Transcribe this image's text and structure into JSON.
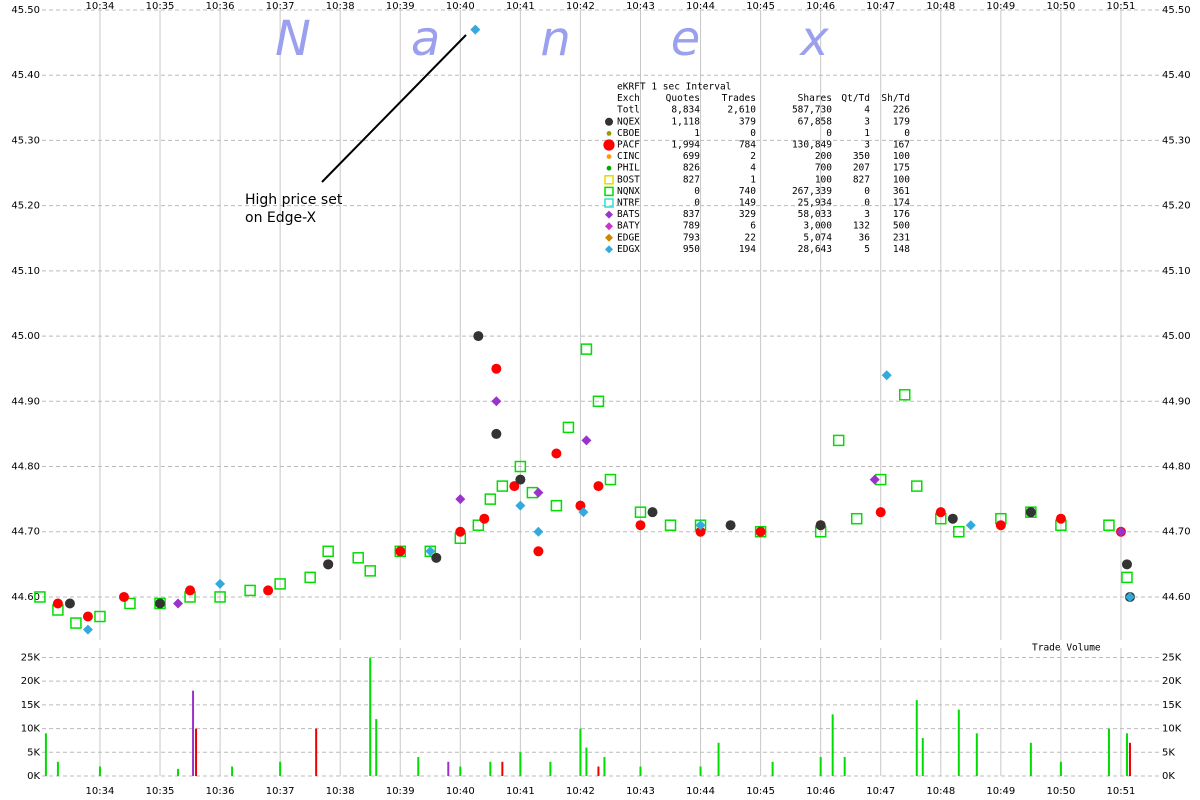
{
  "chart_data": [
    {
      "type": "scatter",
      "watermark": "Nanex",
      "annotation": [
        "High price set",
        "on Edge-X"
      ],
      "xlim": [
        633.035,
        651.65
      ],
      "xticks": [
        {
          "value": 634,
          "label": "10:34"
        },
        {
          "value": 635,
          "label": "10:35"
        },
        {
          "value": 636,
          "label": "10:36"
        },
        {
          "value": 637,
          "label": "10:37"
        },
        {
          "value": 638,
          "label": "10:38"
        },
        {
          "value": 639,
          "label": "10:39"
        },
        {
          "value": 640,
          "label": "10:40"
        },
        {
          "value": 641,
          "label": "10:41"
        },
        {
          "value": 642,
          "label": "10:42"
        },
        {
          "value": 643,
          "label": "10:43"
        },
        {
          "value": 644,
          "label": "10:44"
        },
        {
          "value": 645,
          "label": "10:45"
        },
        {
          "value": 646,
          "label": "10:46"
        },
        {
          "value": 647,
          "label": "10:47"
        },
        {
          "value": 648,
          "label": "10:48"
        },
        {
          "value": 649,
          "label": "10:49"
        },
        {
          "value": 650,
          "label": "10:50"
        },
        {
          "value": 651,
          "label": "10:51"
        }
      ],
      "ylim": [
        44.534,
        45.5
      ],
      "yticks": [
        {
          "value": 44.6,
          "label": "44.60"
        },
        {
          "value": 44.7,
          "label": "44.70"
        },
        {
          "value": 44.8,
          "label": "44.80"
        },
        {
          "value": 44.9,
          "label": "44.90"
        },
        {
          "value": 45.0,
          "label": "45.00"
        },
        {
          "value": 45.1,
          "label": "45.10"
        },
        {
          "value": 45.2,
          "label": "45.20"
        },
        {
          "value": 45.3,
          "label": "45.30"
        },
        {
          "value": 45.4,
          "label": "45.40"
        },
        {
          "value": 45.5,
          "label": "45.50"
        }
      ],
      "grid": true,
      "series": [
        {
          "color": "#00dd00",
          "marker": "square",
          "x": [
            633.0,
            633.3,
            633.6,
            634.0,
            634.5,
            635.0,
            635.5,
            636.0,
            636.5,
            637.0,
            637.5,
            637.8,
            638.3,
            638.5,
            639.0,
            639.5,
            640.0,
            640.3,
            640.5,
            640.7,
            641.0,
            641.2,
            641.6,
            641.8,
            642.1,
            642.3,
            642.5,
            643.0,
            643.5,
            644.0,
            645.0,
            646.0,
            646.3,
            646.6,
            647.0,
            647.4,
            647.6,
            648.0,
            648.3,
            649.0,
            649.5,
            650.0,
            650.8,
            651.1
          ],
          "values": [
            44.6,
            44.58,
            44.56,
            44.57,
            44.59,
            44.59,
            44.6,
            44.6,
            44.61,
            44.62,
            44.63,
            44.67,
            44.66,
            44.64,
            44.67,
            44.67,
            44.69,
            44.71,
            44.75,
            44.77,
            44.8,
            44.76,
            44.74,
            44.86,
            44.98,
            44.9,
            44.78,
            44.73,
            44.71,
            44.71,
            44.7,
            44.7,
            44.84,
            44.72,
            44.78,
            44.91,
            44.77,
            44.72,
            44.7,
            44.72,
            44.73,
            44.71,
            44.71,
            44.63
          ]
        },
        {
          "color": "#ff0000",
          "marker": "circle",
          "x": [
            633.3,
            633.8,
            634.4,
            635.5,
            636.8,
            637.8,
            639.0,
            640.0,
            640.4,
            640.6,
            640.9,
            641.3,
            641.6,
            642.0,
            642.3,
            643.0,
            644.0,
            645.0,
            646.0,
            647.0,
            648.0,
            649.0,
            650.0,
            651.0
          ],
          "values": [
            44.59,
            44.57,
            44.6,
            44.61,
            44.61,
            44.65,
            44.67,
            44.7,
            44.72,
            44.95,
            44.77,
            44.67,
            44.82,
            44.74,
            44.77,
            44.71,
            44.7,
            44.7,
            44.71,
            44.73,
            44.73,
            44.71,
            44.72,
            44.7
          ]
        },
        {
          "color": "#333333",
          "marker": "circle",
          "x": [
            633.5,
            635.0,
            637.8,
            639.6,
            640.3,
            640.6,
            641.0,
            643.2,
            644.5,
            646.0,
            648.2,
            649.5,
            651.1,
            651.15
          ],
          "values": [
            44.59,
            44.59,
            44.65,
            44.66,
            45.0,
            44.85,
            44.78,
            44.73,
            44.71,
            44.71,
            44.72,
            44.73,
            44.65,
            44.6
          ]
        },
        {
          "color": "#9933cc",
          "marker": "diamond",
          "x": [
            635.3,
            640.0,
            640.6,
            641.3,
            642.1,
            646.9,
            651.0
          ],
          "values": [
            44.59,
            44.75,
            44.9,
            44.76,
            44.84,
            44.78,
            44.7
          ]
        },
        {
          "color": "#33aadd",
          "marker": "diamond",
          "x": [
            633.8,
            636.0,
            639.5,
            640.25,
            641.0,
            641.3,
            642.05,
            644.0,
            647.1,
            648.5,
            651.15
          ],
          "values": [
            44.55,
            44.62,
            44.67,
            45.47,
            44.74,
            44.7,
            44.73,
            44.71,
            44.94,
            44.71,
            44.6
          ]
        }
      ],
      "legend_table": {
        "title": "eKRFT 1 sec Interval",
        "columns": [
          "Exch",
          "Quotes",
          "Trades",
          "Shares",
          "Qt/Td",
          "Sh/Td"
        ],
        "rows": [
          {
            "cells": [
              "Totl",
              "8,834",
              "2,610",
              "587,730",
              "4",
              "226"
            ]
          },
          {
            "cells": [
              "NQEX",
              "1,118",
              "379",
              "67,858",
              "3",
              "179"
            ],
            "color": "#333333",
            "marker": "circle"
          },
          {
            "cells": [
              "CBOE",
              "1",
              "0",
              "0",
              "1",
              "0"
            ],
            "color": "#999900",
            "marker": "dot"
          },
          {
            "cells": [
              "PACF",
              "1,994",
              "784",
              "130,849",
              "3",
              "167"
            ],
            "color": "#ff0000",
            "marker": "bigcircle"
          },
          {
            "cells": [
              "CINC",
              "699",
              "2",
              "200",
              "350",
              "100"
            ],
            "color": "#ff9900",
            "marker": "dot"
          },
          {
            "cells": [
              "PHIL",
              "826",
              "4",
              "700",
              "207",
              "175"
            ],
            "color": "#00aa00",
            "marker": "dot"
          },
          {
            "cells": [
              "BOST",
              "827",
              "1",
              "100",
              "827",
              "100"
            ],
            "color": "#dddd00",
            "marker": "square"
          },
          {
            "cells": [
              "NQNX",
              "0",
              "740",
              "267,339",
              "0",
              "361"
            ],
            "color": "#00dd00",
            "marker": "square"
          },
          {
            "cells": [
              "NTRF",
              "0",
              "149",
              "25,934",
              "0",
              "174"
            ],
            "color": "#33ddcc",
            "marker": "square"
          },
          {
            "cells": [
              "BATS",
              "837",
              "329",
              "58,033",
              "3",
              "176"
            ],
            "color": "#9933cc",
            "marker": "diamond"
          },
          {
            "cells": [
              "BATY",
              "789",
              "6",
              "3,000",
              "132",
              "500"
            ],
            "color": "#cc33cc",
            "marker": "diamond"
          },
          {
            "cells": [
              "EDGE",
              "793",
              "22",
              "5,074",
              "36",
              "231"
            ],
            "color": "#cc8800",
            "marker": "diamond"
          },
          {
            "cells": [
              "EDGX",
              "950",
              "194",
              "28,643",
              "5",
              "148"
            ],
            "color": "#33aadd",
            "marker": "diamond"
          }
        ]
      }
    },
    {
      "type": "bar",
      "ylabel": "Trade Volume",
      "xlim": [
        633.035,
        651.65
      ],
      "xticks": [
        {
          "value": 634,
          "label": "10:34"
        },
        {
          "value": 635,
          "label": "10:35"
        },
        {
          "value": 636,
          "label": "10:36"
        },
        {
          "value": 637,
          "label": "10:37"
        },
        {
          "value": 638,
          "label": "10:38"
        },
        {
          "value": 639,
          "label": "10:39"
        },
        {
          "value": 640,
          "label": "10:40"
        },
        {
          "value": 641,
          "label": "10:41"
        },
        {
          "value": 642,
          "label": "10:42"
        },
        {
          "value": 643,
          "label": "10:43"
        },
        {
          "value": 644,
          "label": "10:44"
        },
        {
          "value": 645,
          "label": "10:45"
        },
        {
          "value": 646,
          "label": "10:46"
        },
        {
          "value": 647,
          "label": "10:47"
        },
        {
          "value": 648,
          "label": "10:48"
        },
        {
          "value": 649,
          "label": "10:49"
        },
        {
          "value": 650,
          "label": "10:50"
        },
        {
          "value": 651,
          "label": "10:51"
        }
      ],
      "ylim": [
        0,
        27000
      ],
      "yticks": [
        {
          "value": 0,
          "label": "0K"
        },
        {
          "value": 5000,
          "label": "5K"
        },
        {
          "value": 10000,
          "label": "10K"
        },
        {
          "value": 15000,
          "label": "15K"
        },
        {
          "value": 20000,
          "label": "20K"
        },
        {
          "value": 25000,
          "label": "25K"
        }
      ],
      "grid": true,
      "series": [
        {
          "color": "#00dd00",
          "x": [
            633.1,
            633.3,
            634.0,
            635.3,
            636.2,
            637.0,
            638.5,
            638.6,
            639.3,
            640.0,
            640.5,
            641.0,
            641.5,
            642.0,
            642.1,
            642.4,
            643.0,
            644.0,
            644.3,
            645.2,
            646.0,
            646.2,
            646.4,
            647.6,
            647.7,
            648.3,
            648.6,
            649.5,
            650.0,
            650.8,
            651.1
          ],
          "values": [
            9000,
            3000,
            2000,
            1500,
            2000,
            3000,
            25000,
            12000,
            4000,
            2000,
            3000,
            5000,
            3000,
            10000,
            6000,
            4000,
            2000,
            2000,
            7000,
            3000,
            4000,
            13000,
            4000,
            16000,
            8000,
            14000,
            9000,
            7000,
            3000,
            10000,
            9000
          ]
        },
        {
          "color": "#ee0000",
          "x": [
            635.6,
            637.6,
            640.7,
            642.3,
            651.15
          ],
          "values": [
            10000,
            10000,
            3000,
            2000,
            7000
          ]
        },
        {
          "color": "#9933cc",
          "x": [
            635.55,
            639.8
          ],
          "values": [
            18000,
            3000
          ]
        }
      ]
    }
  ]
}
